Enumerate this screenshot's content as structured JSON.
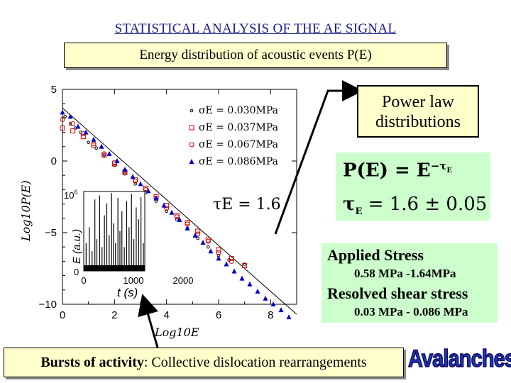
{
  "slide": {
    "title": "STATISTICAL ANALYSIS OF THE AE SIGNAL",
    "subtitle": "Energy distribution of acoustic events   P(E)",
    "power_law_line1": "Power law",
    "power_law_line2": "distributions",
    "formula_line1": "P(E) = E",
    "formula_exp": "−τ",
    "formula_exp_sub": "E",
    "formula_line2_tau": "τ",
    "formula_line2_sub": "E",
    "formula_line2_rest": " = 1.6 ± 0.05",
    "applied_stress_label": "Applied Stress",
    "applied_stress_value": "0.58 MPa -1.64MPa",
    "resolved_label": "Resolved shear stress",
    "resolved_value": "0.03 MPa - 0.086 MPa",
    "bottom_bold": "Bursts of activity",
    "bottom_rest": ": Collective dislocation rearrangements",
    "avalanches": "Avalanches"
  },
  "chart_data": [
    {
      "type": "scatter",
      "xlabel": "Log10E",
      "ylabel": "Log10P(E)",
      "xlim": [
        0,
        9
      ],
      "ylim": [
        -10,
        5
      ],
      "xticks": [
        "0",
        "2",
        "4",
        "6",
        "8"
      ],
      "yticks": [
        "5",
        "0",
        "−5",
        "−10"
      ],
      "annotation": "τE = 1.6",
      "fit_line": {
        "x": [
          0,
          9
        ],
        "y": [
          3.7,
          -10.7
        ]
      },
      "series": [
        {
          "name": "σE = 0.030MPa",
          "marker": "circle-small",
          "color": "#000000",
          "points": [
            [
              0.1,
              3.1
            ],
            [
              0.3,
              2.6
            ],
            [
              0.5,
              2.3
            ],
            [
              0.7,
              2.0
            ],
            [
              1.0,
              1.3
            ],
            [
              1.3,
              0.9
            ],
            [
              1.6,
              0.4
            ],
            [
              2.0,
              -0.3
            ],
            [
              2.4,
              -0.9
            ],
            [
              2.8,
              -1.6
            ],
            [
              3.2,
              -2.2
            ],
            [
              3.6,
              -2.8
            ],
            [
              4.0,
              -3.5
            ],
            [
              4.4,
              -4.1
            ],
            [
              4.8,
              -4.7
            ],
            [
              5.2,
              -5.4
            ],
            [
              5.6,
              -6.0
            ],
            [
              6.0,
              -6.6
            ],
            [
              6.4,
              -6.9
            ],
            [
              7.0,
              -7.2
            ]
          ]
        },
        {
          "name": "σE = 0.037MPa",
          "marker": "square-open",
          "color": "#cc0000",
          "points": [
            [
              0.0,
              2.3
            ],
            [
              0.4,
              2.1
            ],
            [
              0.8,
              1.7
            ],
            [
              1.2,
              1.1
            ],
            [
              1.6,
              0.4
            ],
            [
              2.0,
              -0.2
            ],
            [
              2.4,
              -0.8
            ],
            [
              2.8,
              -1.3
            ],
            [
              3.2,
              -1.9
            ],
            [
              3.6,
              -2.5
            ],
            [
              4.0,
              -3.1
            ],
            [
              4.4,
              -3.8
            ],
            [
              4.8,
              -4.3
            ],
            [
              5.2,
              -4.9
            ],
            [
              5.6,
              -5.5
            ],
            [
              6.0,
              -6.2
            ],
            [
              6.5,
              -6.8
            ],
            [
              7.0,
              -7.3
            ]
          ]
        },
        {
          "name": "σE = 0.067MPa",
          "marker": "circle-open",
          "color": "#cc0000",
          "points": [
            [
              0.0,
              2.9
            ],
            [
              0.4,
              2.6
            ],
            [
              0.8,
              1.9
            ],
            [
              1.2,
              1.2
            ],
            [
              1.6,
              0.5
            ],
            [
              2.0,
              -0.1
            ],
            [
              2.4,
              -0.7
            ],
            [
              2.8,
              -1.4
            ],
            [
              3.2,
              -2.0
            ],
            [
              3.6,
              -2.6
            ],
            [
              4.0,
              -3.3
            ],
            [
              4.4,
              -3.9
            ],
            [
              4.8,
              -4.4
            ],
            [
              5.2,
              -5.1
            ],
            [
              5.6,
              -5.6
            ],
            [
              6.0,
              -6.4
            ],
            [
              6.5,
              -7.0
            ]
          ]
        },
        {
          "name": "σE = 0.086MPa",
          "marker": "triangle-filled",
          "color": "#0000cc",
          "points": [
            [
              0.0,
              3.4
            ],
            [
              0.3,
              3.1
            ],
            [
              0.6,
              2.4
            ],
            [
              0.9,
              2.0
            ],
            [
              1.2,
              1.5
            ],
            [
              1.5,
              1.0
            ],
            [
              1.8,
              0.5
            ],
            [
              2.1,
              0.0
            ],
            [
              2.4,
              -0.6
            ],
            [
              2.7,
              -1.1
            ],
            [
              3.0,
              -1.6
            ],
            [
              3.3,
              -2.1
            ],
            [
              3.6,
              -2.6
            ],
            [
              3.9,
              -3.1
            ],
            [
              4.2,
              -3.6
            ],
            [
              4.5,
              -4.1
            ],
            [
              4.8,
              -4.7
            ],
            [
              5.1,
              -5.2
            ],
            [
              5.4,
              -5.7
            ],
            [
              5.7,
              -6.3
            ],
            [
              6.0,
              -6.8
            ],
            [
              6.3,
              -7.2
            ],
            [
              6.6,
              -7.7
            ],
            [
              6.9,
              -8.2
            ],
            [
              7.2,
              -8.6
            ],
            [
              7.5,
              -9.1
            ],
            [
              7.8,
              -9.6
            ],
            [
              8.1,
              -10.0
            ],
            [
              8.4,
              -10.4
            ],
            [
              8.7,
              -10.9
            ]
          ]
        }
      ]
    },
    {
      "type": "bar",
      "xlabel": "t (s)",
      "ylabel": "E (a.u.)",
      "xlim": [
        0,
        2500
      ],
      "ylim": [
        0,
        1000000
      ],
      "xticks": [
        "0",
        "1000",
        "2000"
      ],
      "yticks": [
        "10^6",
        "0"
      ],
      "y_tick_base": "10",
      "y_tick_exp": "6",
      "bursts": [
        [
          60,
          0.35
        ],
        [
          140,
          0.55
        ],
        [
          210,
          0.25
        ],
        [
          280,
          0.9
        ],
        [
          330,
          0.4
        ],
        [
          400,
          0.95
        ],
        [
          460,
          0.3
        ],
        [
          520,
          0.7
        ],
        [
          580,
          0.85
        ],
        [
          640,
          0.45
        ],
        [
          700,
          0.98
        ],
        [
          750,
          0.6
        ],
        [
          800,
          0.35
        ],
        [
          860,
          0.92
        ],
        [
          910,
          0.5
        ],
        [
          960,
          0.75
        ],
        [
          1020,
          0.3
        ],
        [
          1080,
          0.88
        ],
        [
          1140,
          0.55
        ],
        [
          1200,
          0.97
        ],
        [
          1260,
          0.4
        ],
        [
          1320,
          0.8
        ],
        [
          1380,
          0.65
        ],
        [
          1440,
          0.93
        ],
        [
          1500,
          0.35
        ],
        [
          1560,
          0.7
        ],
        [
          1620,
          0.99
        ],
        [
          1680,
          0.5
        ],
        [
          1740,
          0.85
        ],
        [
          1800,
          0.45
        ],
        [
          1860,
          0.9
        ],
        [
          1920,
          0.6
        ],
        [
          1980,
          0.75
        ],
        [
          2040,
          0.96
        ],
        [
          2100,
          0.4
        ],
        [
          2160,
          0.8
        ],
        [
          2220,
          0.55
        ],
        [
          2280,
          0.9
        ],
        [
          2340,
          0.65
        ],
        [
          2400,
          0.95
        ]
      ]
    }
  ]
}
